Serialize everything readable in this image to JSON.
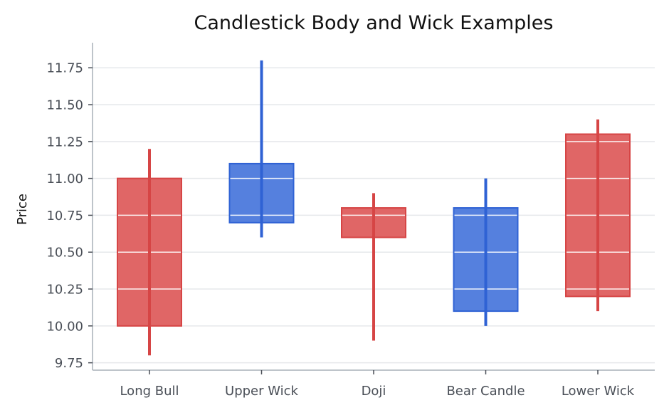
{
  "chart_data": {
    "type": "candlestick",
    "title": "Candlestick Body and Wick Examples",
    "xlabel": "",
    "ylabel": "Price",
    "ylim": [
      9.7,
      11.92
    ],
    "grid": true,
    "yticks": [
      "9.75",
      "10.00",
      "10.25",
      "10.50",
      "10.75",
      "11.00",
      "11.25",
      "11.50",
      "11.75"
    ],
    "ytick_values": [
      9.75,
      10.0,
      10.25,
      10.5,
      10.75,
      11.0,
      11.25,
      11.5,
      11.75
    ],
    "categories": [
      "Long Bull",
      "Upper Wick",
      "Doji",
      "Bear Candle",
      "Lower Wick"
    ],
    "candles": [
      {
        "category": "Long Bull",
        "body_low": 10.0,
        "body_high": 11.0,
        "wick_low": 9.8,
        "wick_high": 11.2,
        "color": "#e06666",
        "wick_color": "#d64545"
      },
      {
        "category": "Upper Wick",
        "body_low": 10.7,
        "body_high": 11.1,
        "wick_low": 10.6,
        "wick_high": 11.8,
        "color": "#5580de",
        "wick_color": "#2f62d4"
      },
      {
        "category": "Doji",
        "body_low": 10.6,
        "body_high": 10.8,
        "wick_low": 9.9,
        "wick_high": 10.9,
        "color": "#e06666",
        "wick_color": "#d64545"
      },
      {
        "category": "Bear Candle",
        "body_low": 10.1,
        "body_high": 10.8,
        "wick_low": 10.0,
        "wick_high": 11.0,
        "color": "#5580de",
        "wick_color": "#2f62d4"
      },
      {
        "category": "Lower Wick",
        "body_low": 10.2,
        "body_high": 11.3,
        "wick_low": 10.1,
        "wick_high": 11.4,
        "color": "#e06666",
        "wick_color": "#d64545"
      }
    ]
  }
}
